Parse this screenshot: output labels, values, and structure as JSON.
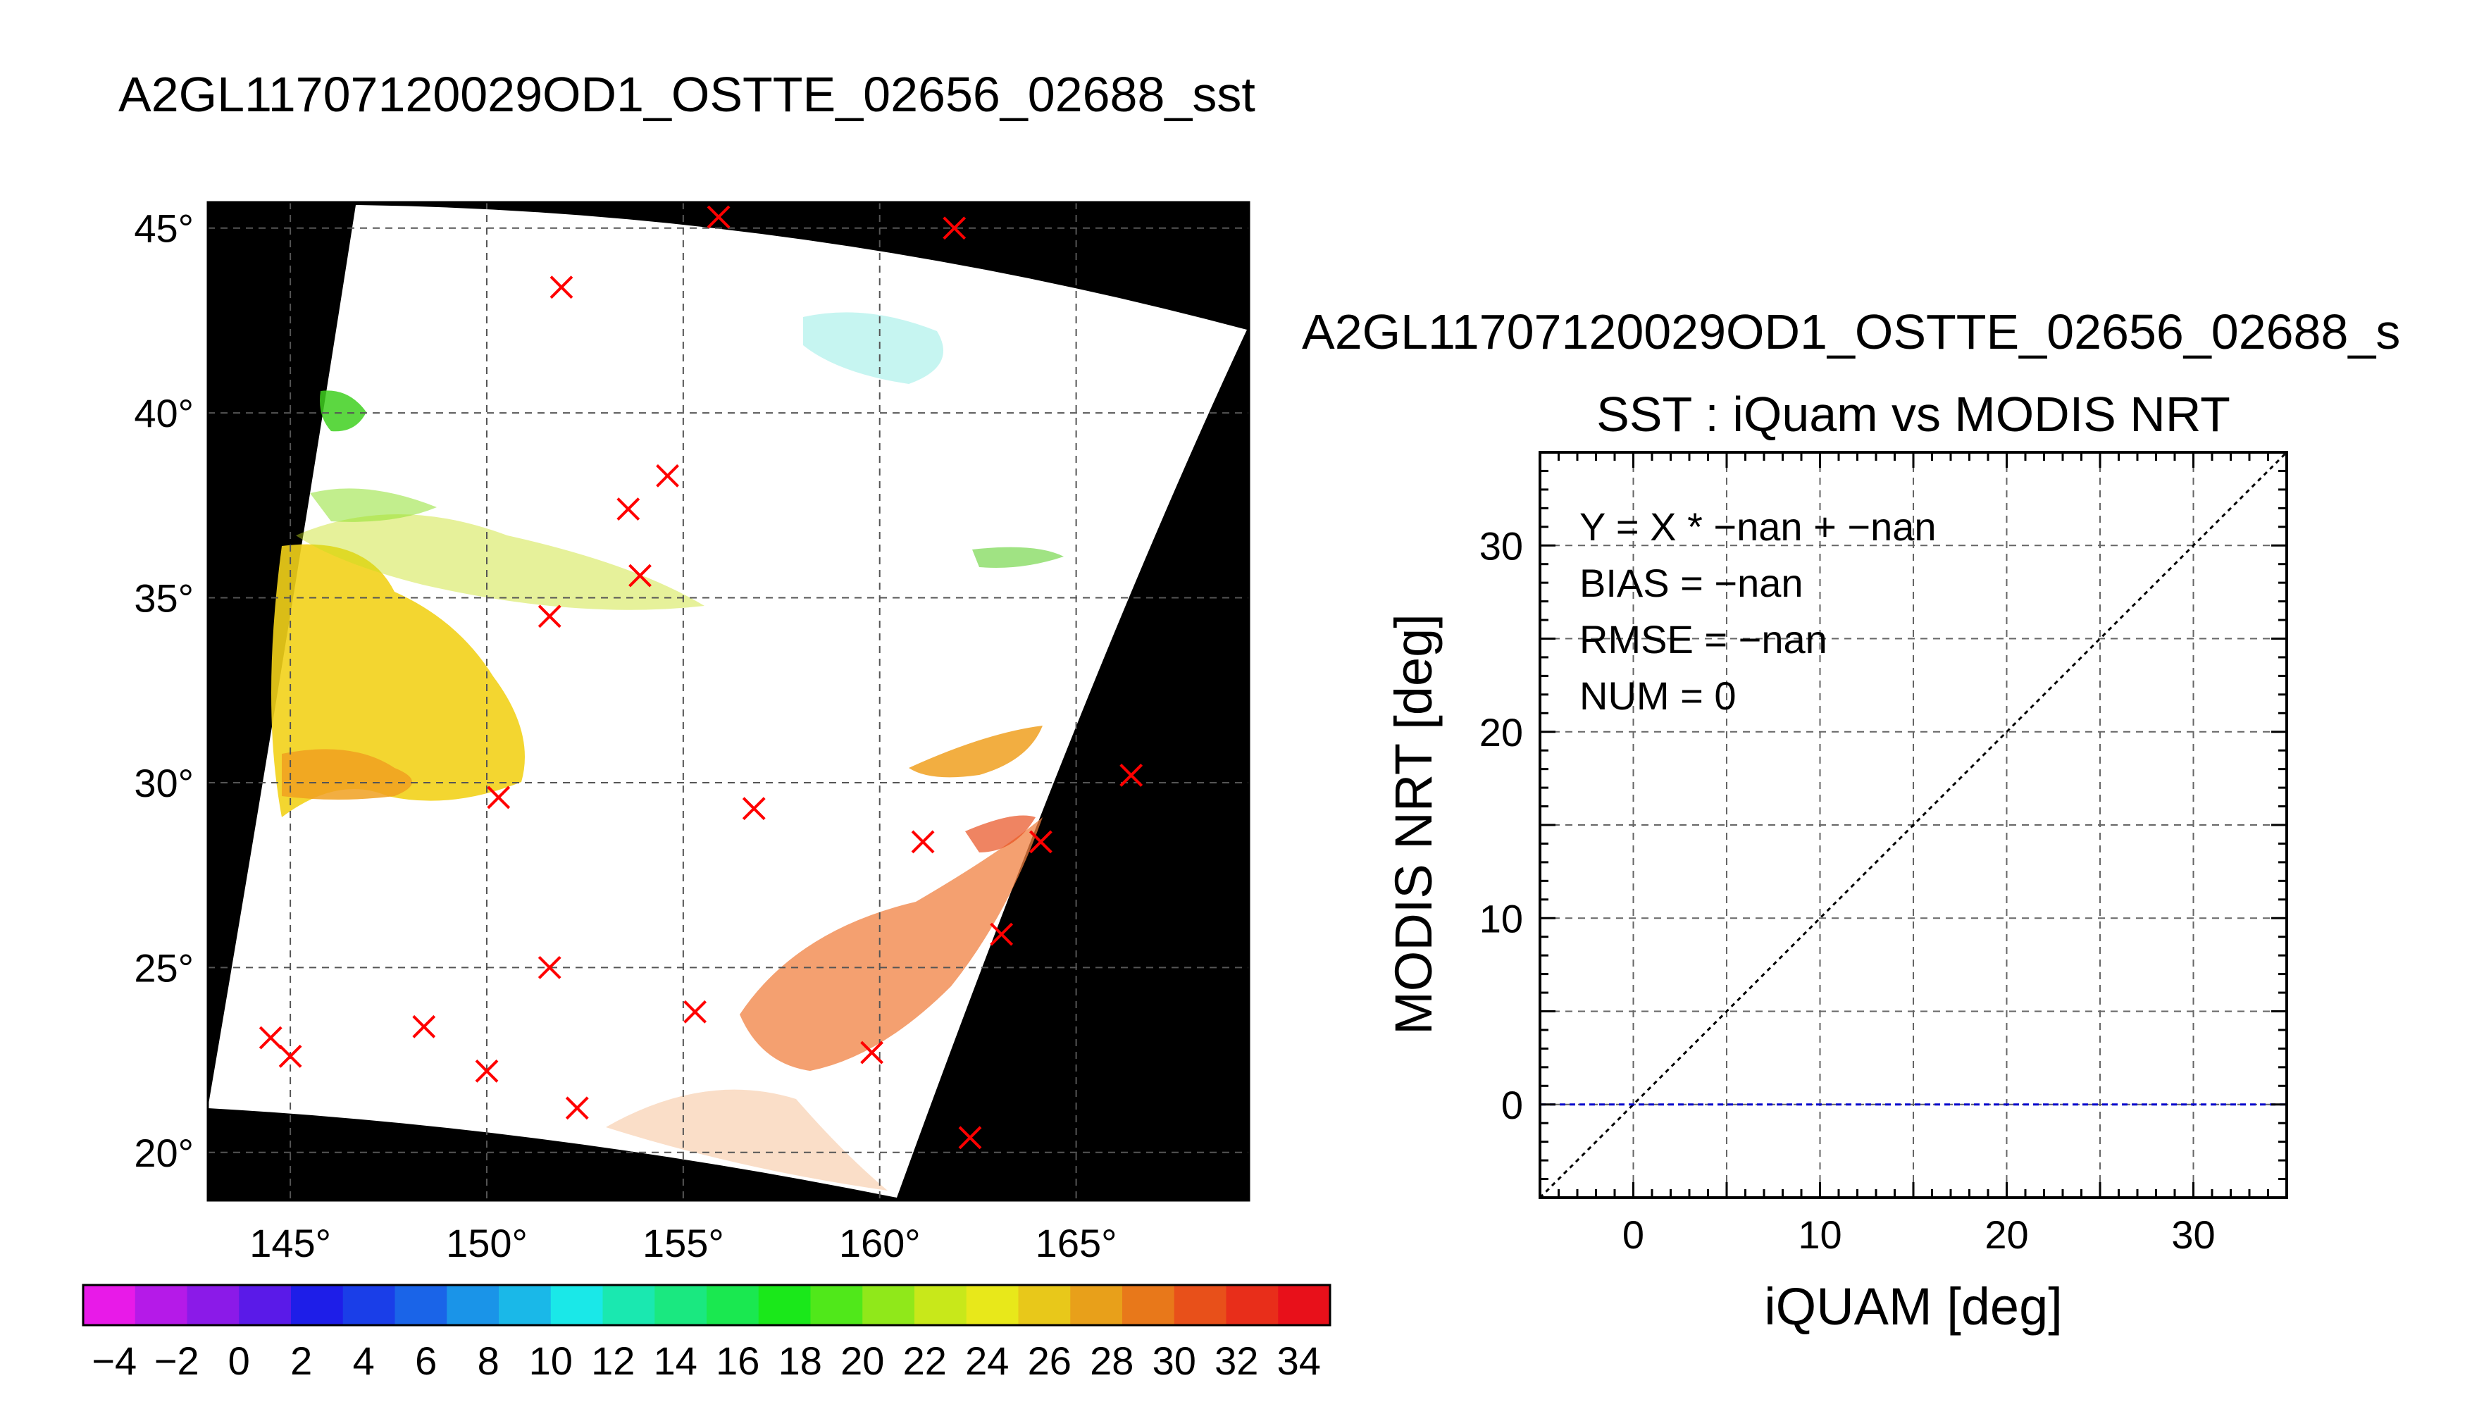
{
  "page_title": "A2GL11707120029OD1_OSTTE_02656_02688_sst",
  "map": {
    "lat_labels": [
      "20°",
      "25°",
      "30°",
      "35°",
      "40°",
      "45°"
    ],
    "lon_labels": [
      "145°",
      "150°",
      "155°",
      "160°",
      "165°"
    ],
    "lat_range": [
      18.7,
      45.7
    ],
    "lon_range": [
      142.9,
      169.4
    ],
    "land_color": "#000000",
    "cross_color": "#ff0000",
    "stations": [
      [
        155.9,
        45.3
      ],
      [
        161.9,
        45.0
      ],
      [
        151.9,
        43.4
      ],
      [
        154.6,
        38.3
      ],
      [
        153.6,
        37.4
      ],
      [
        153.9,
        35.6
      ],
      [
        151.6,
        34.5
      ],
      [
        166.4,
        30.2
      ],
      [
        150.3,
        29.6
      ],
      [
        156.8,
        29.3
      ],
      [
        161.1,
        28.4
      ],
      [
        164.1,
        28.4
      ],
      [
        163.1,
        25.9
      ],
      [
        151.6,
        25.0
      ],
      [
        148.4,
        23.4
      ],
      [
        144.5,
        23.1
      ],
      [
        145.0,
        22.6
      ],
      [
        155.3,
        23.8
      ],
      [
        159.8,
        22.7
      ],
      [
        150.0,
        22.2
      ],
      [
        152.3,
        21.2
      ],
      [
        162.3,
        20.4
      ]
    ]
  },
  "colorbar": {
    "labels": [
      "−4",
      "−2",
      "0",
      "2",
      "4",
      "6",
      "8",
      "10",
      "12",
      "14",
      "16",
      "18",
      "20",
      "22",
      "24",
      "26",
      "28",
      "30",
      "32",
      "34"
    ],
    "range": [
      -5,
      35
    ],
    "colors": [
      "#e81ae8",
      "#b51ae8",
      "#8b1ae8",
      "#5a1ae8",
      "#1e1ee8",
      "#1a3ee8",
      "#1a64e8",
      "#1a94e8",
      "#1ab8e8",
      "#1ae8e8",
      "#1ae8b0",
      "#1ae880",
      "#1ae850",
      "#1ae81a",
      "#50e81a",
      "#90e81a",
      "#c8e81a",
      "#e8e81a",
      "#e8c81a",
      "#e8a01a",
      "#e8781a",
      "#e8501a",
      "#e82e1a",
      "#e8101a"
    ]
  },
  "scatter_title": "A2GL11707120029OD1_OSTTE_02656_02688_s",
  "chart_data": {
    "type": "scatter",
    "title": "SST : iQuam vs MODIS NRT",
    "xlabel": "iQUAM [deg]",
    "ylabel": "MODIS NRT [deg]",
    "xlim": [
      -5,
      35
    ],
    "ylim": [
      -5,
      35
    ],
    "xticks": [
      "0",
      "10",
      "20",
      "30"
    ],
    "yticks": [
      "0",
      "10",
      "20",
      "30"
    ],
    "grid": true,
    "points": [],
    "one_to_one_line": {
      "x": [
        -5,
        35
      ],
      "y": [
        -5,
        35
      ],
      "color": "#000000"
    },
    "zero_line": {
      "y": 0,
      "color": "#0000cc"
    },
    "stats": [
      "Y = X * −nan + −nan",
      "BIAS = −nan",
      "RMSE = −nan",
      "NUM = 0"
    ]
  }
}
